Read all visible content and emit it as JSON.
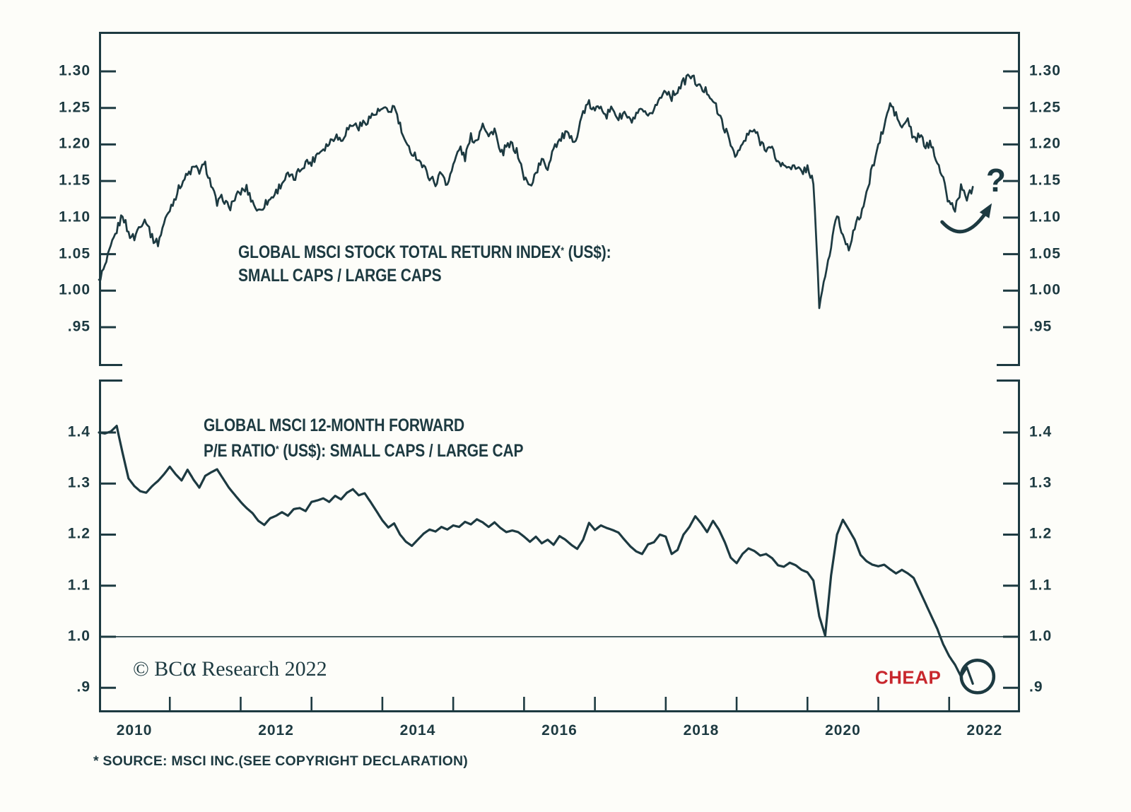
{
  "colors": {
    "ink": "#1d3a41",
    "accent_red": "#c8272d",
    "background": "#fdfdf9"
  },
  "footer": {
    "copyright_prefix": "© BC",
    "copyright_alpha": "α",
    "copyright_suffix": " Research 2022",
    "source_note": "* SOURCE: MSCI INC.(SEE COPYRIGHT DECLARATION)"
  },
  "x_axis": {
    "range": [
      2010,
      2023
    ],
    "tick_years": [
      2011,
      2012,
      2013,
      2014,
      2015,
      2016,
      2017,
      2018,
      2019,
      2020,
      2021,
      2022
    ],
    "year_labels": [
      "2010",
      "2012",
      "2014",
      "2016",
      "2018",
      "2020",
      "2022"
    ],
    "label_years": [
      2010,
      2012,
      2014,
      2016,
      2018,
      2020,
      2022
    ]
  },
  "chart_data": [
    {
      "id": "total-return-ratio",
      "type": "line",
      "panel": "top",
      "title": {
        "line1_main": "GLOBAL MSCI STOCK TOTAL RETURN INDEX",
        "line1_sup": "*",
        "line1_tail": " (US$):",
        "line2": "SMALL CAPS / LARGE CAPS"
      },
      "ylim": [
        0.897,
        1.354
      ],
      "y_tick_values": [
        1.3,
        1.25,
        1.2,
        1.15,
        1.1,
        1.05,
        1.0,
        0.95
      ],
      "y_tick_labels": [
        "1.30",
        "1.25",
        "1.20",
        "1.15",
        "1.10",
        "1.05",
        "1.00",
        ".95"
      ],
      "grid": false,
      "legend": "none",
      "series": {
        "name": "Small caps / Large caps total return ratio",
        "start_year": 2010.0,
        "step_years": 0.083333,
        "values": [
          1.015,
          1.032,
          1.058,
          1.082,
          1.105,
          1.078,
          1.072,
          1.092,
          1.097,
          1.072,
          1.065,
          1.092,
          1.112,
          1.13,
          1.148,
          1.158,
          1.168,
          1.164,
          1.172,
          1.145,
          1.118,
          1.128,
          1.112,
          1.126,
          1.135,
          1.14,
          1.122,
          1.108,
          1.118,
          1.125,
          1.135,
          1.148,
          1.158,
          1.152,
          1.165,
          1.176,
          1.175,
          1.188,
          1.195,
          1.202,
          1.213,
          1.206,
          1.22,
          1.228,
          1.224,
          1.23,
          1.238,
          1.243,
          1.248,
          1.244,
          1.252,
          1.225,
          1.198,
          1.19,
          1.182,
          1.168,
          1.156,
          1.147,
          1.162,
          1.146,
          1.17,
          1.196,
          1.182,
          1.21,
          1.205,
          1.232,
          1.21,
          1.222,
          1.185,
          1.196,
          1.2,
          1.186,
          1.155,
          1.142,
          1.162,
          1.178,
          1.168,
          1.198,
          1.205,
          1.215,
          1.206,
          1.212,
          1.245,
          1.255,
          1.245,
          1.255,
          1.24,
          1.25,
          1.235,
          1.243,
          1.231,
          1.238,
          1.247,
          1.234,
          1.25,
          1.262,
          1.276,
          1.265,
          1.275,
          1.285,
          1.295,
          1.287,
          1.275,
          1.273,
          1.262,
          1.24,
          1.222,
          1.2,
          1.185,
          1.2,
          1.214,
          1.22,
          1.204,
          1.196,
          1.193,
          1.176,
          1.17,
          1.172,
          1.166,
          1.163,
          1.168,
          1.15,
          0.98,
          1.02,
          1.06,
          1.105,
          1.075,
          1.06,
          1.085,
          1.105,
          1.13,
          1.17,
          1.198,
          1.225,
          1.256,
          1.24,
          1.222,
          1.235,
          1.205,
          1.212,
          1.198,
          1.2,
          1.178,
          1.15,
          1.12,
          1.112,
          1.14,
          1.128,
          1.142
        ]
      },
      "annotations": {
        "question": {
          "text": "?",
          "year": 2022.66,
          "value": 1.149
        },
        "arrow": {
          "from": [
            2021.9,
            1.094
          ],
          "ctrl": [
            2022.22,
            1.06
          ],
          "to": [
            2022.56,
            1.113
          ]
        }
      }
    },
    {
      "id": "forward-pe-ratio",
      "type": "line",
      "panel": "bottom",
      "title": {
        "line1": "GLOBAL MSCI 12-MONTH FORWARD",
        "line2_main": "P/E RATIO",
        "line2_sup": "*",
        "line2_tail": " (US$): SMALL CAPS / LARGE CAP"
      },
      "ylim": [
        0.852,
        1.504
      ],
      "y_tick_values": [
        1.4,
        1.3,
        1.2,
        1.1,
        1.0,
        0.9
      ],
      "y_tick_labels": [
        "1.4",
        "1.3",
        "1.2",
        "1.1",
        "1.0",
        ".9"
      ],
      "reference_line": 1.0,
      "grid": false,
      "legend": "none",
      "series": {
        "name": "Small caps / Large cap 12-month forward P/E ratio",
        "start_year": 2010.0,
        "step_years": 0.083333,
        "values": [
          1.4,
          1.398,
          1.402,
          1.413,
          1.36,
          1.31,
          1.295,
          1.285,
          1.282,
          1.295,
          1.305,
          1.318,
          1.333,
          1.318,
          1.306,
          1.327,
          1.308,
          1.292,
          1.315,
          1.322,
          1.328,
          1.31,
          1.292,
          1.278,
          1.264,
          1.252,
          1.242,
          1.227,
          1.219,
          1.232,
          1.237,
          1.244,
          1.237,
          1.25,
          1.252,
          1.246,
          1.264,
          1.267,
          1.271,
          1.264,
          1.276,
          1.269,
          1.282,
          1.289,
          1.277,
          1.281,
          1.264,
          1.246,
          1.228,
          1.214,
          1.222,
          1.2,
          1.186,
          1.178,
          1.19,
          1.202,
          1.21,
          1.206,
          1.215,
          1.21,
          1.218,
          1.215,
          1.225,
          1.22,
          1.23,
          1.224,
          1.215,
          1.224,
          1.213,
          1.205,
          1.208,
          1.205,
          1.196,
          1.186,
          1.196,
          1.183,
          1.19,
          1.18,
          1.197,
          1.19,
          1.18,
          1.172,
          1.19,
          1.223,
          1.209,
          1.218,
          1.213,
          1.209,
          1.204,
          1.19,
          1.177,
          1.167,
          1.162,
          1.181,
          1.185,
          1.2,
          1.196,
          1.162,
          1.17,
          1.2,
          1.215,
          1.236,
          1.222,
          1.205,
          1.227,
          1.21,
          1.185,
          1.155,
          1.144,
          1.162,
          1.173,
          1.168,
          1.159,
          1.162,
          1.154,
          1.14,
          1.137,
          1.145,
          1.14,
          1.131,
          1.126,
          1.11,
          1.04,
          1.002,
          1.12,
          1.2,
          1.229,
          1.21,
          1.19,
          1.16,
          1.148,
          1.141,
          1.138,
          1.141,
          1.132,
          1.124,
          1.131,
          1.124,
          1.115,
          1.09,
          1.065,
          1.04,
          1.015,
          0.985,
          0.962,
          0.945,
          0.922,
          0.94,
          0.908
        ]
      },
      "annotations": {
        "cheap": {
          "text": "CHEAP",
          "year": 2021.42,
          "value": 0.92
        },
        "circle": {
          "year": 2022.4,
          "value": 0.922,
          "radius_px": 23
        }
      }
    }
  ]
}
